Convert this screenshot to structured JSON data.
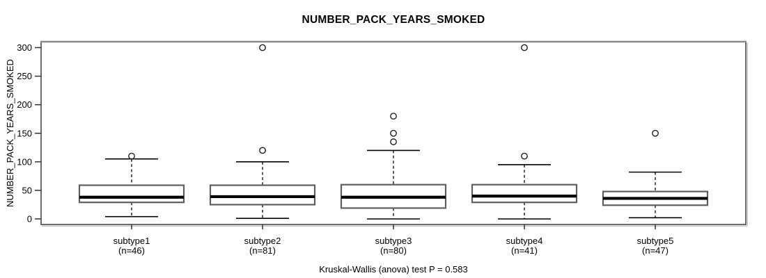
{
  "chart_data": {
    "type": "boxplot",
    "title": "NUMBER_PACK_YEARS_SMOKED",
    "ylabel": "NUMBER_PACK_YEARS_SMOKED",
    "annotation": "Kruskal-Wallis (anova) test P = 0.583",
    "ylim": [
      0,
      300
    ],
    "yticks": [
      0,
      50,
      100,
      150,
      200,
      250,
      300
    ],
    "grid": false,
    "legend": "none",
    "categories": [
      "subtype1",
      "subtype2",
      "subtype3",
      "subtype4",
      "subtype5"
    ],
    "groups": [
      {
        "label": "subtype1",
        "n_label": "(n=46)",
        "n": 46,
        "whisker_low": 4,
        "q1": 29,
        "median": 38,
        "q3": 59,
        "whisker_high": 105,
        "outliers": [
          110
        ]
      },
      {
        "label": "subtype2",
        "n_label": "(n=81)",
        "n": 81,
        "whisker_low": 1,
        "q1": 25,
        "median": 39,
        "q3": 59,
        "whisker_high": 100,
        "outliers": [
          120,
          300
        ]
      },
      {
        "label": "subtype3",
        "n_label": "(n=80)",
        "n": 80,
        "whisker_low": 0,
        "q1": 19,
        "median": 38,
        "q3": 60,
        "whisker_high": 120,
        "outliers": [
          135,
          150,
          180
        ]
      },
      {
        "label": "subtype4",
        "n_label": "(n=41)",
        "n": 41,
        "whisker_low": 0,
        "q1": 29,
        "median": 40,
        "q3": 60,
        "whisker_high": 95,
        "outliers": [
          110,
          300
        ]
      },
      {
        "label": "subtype5",
        "n_label": "(n=47)",
        "n": 47,
        "whisker_low": 2,
        "q1": 24,
        "median": 36,
        "q3": 48,
        "whisker_high": 82,
        "outliers": [
          150
        ]
      }
    ],
    "colors": {
      "background": "#ffffff",
      "box_fill": "#ffffff",
      "box_stroke": "#5f5f5f",
      "line": "#000000",
      "frame": "#474747",
      "frame_top": "#8a8a8a",
      "frame_shadow": "#b3b3b3",
      "tick": "#333333"
    }
  }
}
